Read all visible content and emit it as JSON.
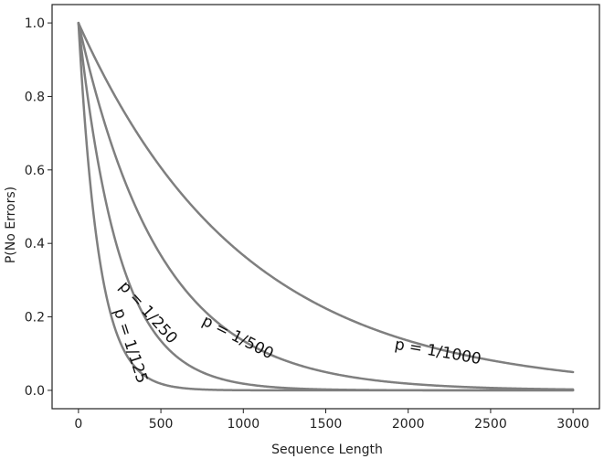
{
  "chart_data": {
    "type": "line",
    "title": "",
    "xlabel": "Sequence Length",
    "ylabel": "P(No Errors)",
    "xlim": [
      -160,
      3160
    ],
    "ylim": [
      -0.05,
      1.05
    ],
    "xticks": [
      0,
      500,
      1000,
      1500,
      2000,
      2500,
      3000
    ],
    "xtick_labels": [
      "0",
      "500",
      "1000",
      "1500",
      "2000",
      "2500",
      "3000"
    ],
    "yticks": [
      0.0,
      0.2,
      0.4,
      0.6,
      0.8,
      1.0
    ],
    "ytick_labels": [
      "0.0",
      "0.2",
      "0.4",
      "0.6",
      "0.8",
      "1.0"
    ],
    "grid": false,
    "legend": "none",
    "line_color": "#7f7f7f",
    "function": "(1 - p)^n",
    "series": [
      {
        "label": "p = 1/125",
        "p": 0.008,
        "x": [
          0,
          100,
          200,
          300,
          400,
          500,
          750,
          1000,
          1500,
          2000,
          2500,
          3000
        ],
        "y": [
          1.0,
          0.448,
          0.2,
          0.0895,
          0.0401,
          0.0179,
          0.0024,
          0.0003,
          0.0,
          0.0,
          0.0,
          0.0
        ],
        "label_at_x": 260,
        "label_rotation": 72
      },
      {
        "label": "p = 1/250",
        "p": 0.004,
        "x": [
          0,
          100,
          200,
          300,
          400,
          500,
          750,
          1000,
          1500,
          2000,
          2500,
          3000
        ],
        "y": [
          1.0,
          0.67,
          0.449,
          0.301,
          0.201,
          0.135,
          0.0494,
          0.0181,
          0.0024,
          0.0003,
          0.0,
          0.0
        ],
        "label_at_x": 380,
        "label_rotation": 48
      },
      {
        "label": "p = 1/500",
        "p": 0.002,
        "x": [
          0,
          250,
          500,
          750,
          1000,
          1500,
          2000,
          2500,
          3000
        ],
        "y": [
          1.0,
          0.606,
          0.368,
          0.223,
          0.135,
          0.0496,
          0.0182,
          0.0067,
          0.0025
        ],
        "label_at_x": 940,
        "label_rotation": 27
      },
      {
        "label": "p = 1/1000",
        "p": 0.001,
        "x": [
          0,
          500,
          1000,
          1500,
          2000,
          2500,
          3000
        ],
        "y": [
          1.0,
          0.606,
          0.368,
          0.223,
          0.135,
          0.0821,
          0.0497
        ],
        "label_at_x": 2170,
        "label_rotation": 10
      }
    ]
  }
}
